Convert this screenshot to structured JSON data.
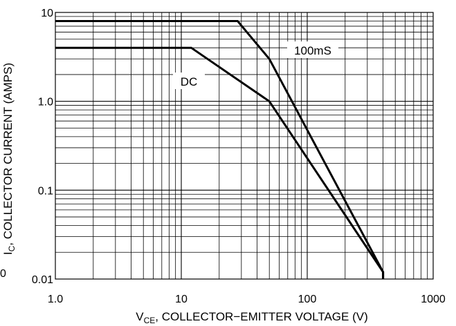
{
  "chart_data": {
    "type": "line",
    "x_scale": "log",
    "y_scale": "log",
    "xlim": [
      1.0,
      1000
    ],
    "ylim": [
      0.01,
      10
    ],
    "grid": true,
    "legend": "none",
    "xlabel": {
      "prefix": "V",
      "subscript": "CE",
      "suffix": ", COLLECTOR−EMITTER VOLTAGE (V)"
    },
    "ylabel": {
      "prefix": "I",
      "subscript": "C",
      "suffix": ", COLLECTOR CURRENT (AMPS)"
    },
    "x_ticks": [
      {
        "value": 1,
        "label": "1.0"
      },
      {
        "value": 10,
        "label": "10"
      },
      {
        "value": 100,
        "label": "100"
      },
      {
        "value": 1000,
        "label": "1000"
      }
    ],
    "y_ticks": [
      {
        "value": 0.01,
        "label": "0.01"
      },
      {
        "value": 0.1,
        "label": "0.1"
      },
      {
        "value": 1,
        "label": "1.0"
      },
      {
        "value": 10,
        "label": "10"
      }
    ],
    "series": [
      {
        "name": "100mS",
        "x": [
          1.0,
          28,
          50,
          400,
          400
        ],
        "y": [
          8.0,
          8.0,
          3.0,
          0.012,
          0.01
        ]
      },
      {
        "name": "DC",
        "x": [
          1.0,
          12,
          50,
          400,
          400
        ],
        "y": [
          4.0,
          4.0,
          1.0,
          0.012,
          0.01
        ]
      }
    ],
    "stray_tick_label": "0"
  }
}
